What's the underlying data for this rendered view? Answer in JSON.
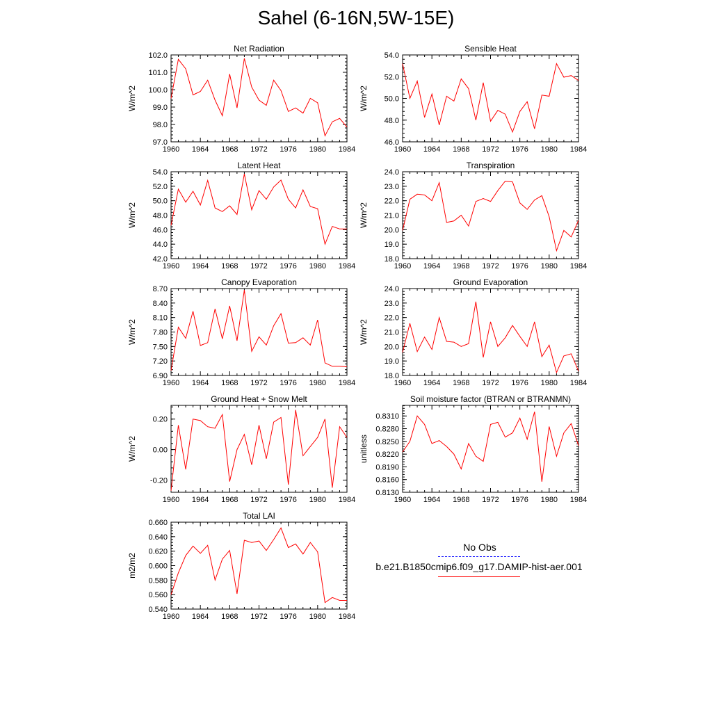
{
  "page": {
    "title": "Sahel (6-16N,5W-15E)"
  },
  "legend": {
    "entries": [
      {
        "label": "No Obs",
        "color": "#1a1aff",
        "dash": "dashed"
      },
      {
        "label": "b.e21.B1850cmip6.f09_g17.DAMIP-hist-aer.001",
        "color": "#ff0000",
        "dash": "solid"
      }
    ]
  },
  "colors": {
    "series": "#ff0000",
    "axis": "#000000"
  },
  "chart_data": [
    {
      "type": "line",
      "title": "Net Radiation",
      "xlabel": "",
      "ylabel": "W/m^2",
      "xlim": [
        1960,
        1984
      ],
      "ylim": [
        97.0,
        102.0
      ],
      "xticks": [
        1960,
        1964,
        1968,
        1972,
        1976,
        1980,
        1984
      ],
      "xtick_labels": [
        "1960",
        "1964",
        "1968",
        "1972",
        "1976",
        "1980",
        "1984"
      ],
      "yticks": [
        97.0,
        98.0,
        99.0,
        100.0,
        101.0,
        102.0
      ],
      "ytick_labels": [
        "97.0",
        "98.0",
        "99.0",
        "100.0",
        "101.0",
        "102.0"
      ],
      "x": [
        1960,
        1961,
        1962,
        1963,
        1964,
        1965,
        1966,
        1967,
        1968,
        1969,
        1970,
        1971,
        1972,
        1973,
        1974,
        1975,
        1976,
        1977,
        1978,
        1979,
        1980,
        1981,
        1982,
        1983,
        1984
      ],
      "series": [
        {
          "values": [
            99.5,
            101.75,
            101.2,
            99.7,
            99.9,
            100.55,
            99.4,
            98.5,
            100.9,
            98.95,
            101.8,
            100.15,
            99.4,
            99.1,
            100.55,
            99.95,
            98.75,
            98.95,
            98.65,
            99.5,
            99.25,
            97.35,
            98.15,
            98.35,
            97.85
          ]
        }
      ]
    },
    {
      "type": "line",
      "title": "Sensible Heat",
      "xlabel": "",
      "ylabel": "W/m^2",
      "xlim": [
        1960,
        1984
      ],
      "ylim": [
        46.0,
        54.0
      ],
      "xticks": [
        1960,
        1964,
        1968,
        1972,
        1976,
        1980,
        1984
      ],
      "xtick_labels": [
        "1960",
        "1964",
        "1968",
        "1972",
        "1976",
        "1980",
        "1984"
      ],
      "yticks": [
        46.0,
        48.0,
        50.0,
        52.0,
        54.0
      ],
      "ytick_labels": [
        "46.0",
        "48.0",
        "50.0",
        "52.0",
        "54.0"
      ],
      "x": [
        1960,
        1961,
        1962,
        1963,
        1964,
        1965,
        1966,
        1967,
        1968,
        1969,
        1970,
        1971,
        1972,
        1973,
        1974,
        1975,
        1976,
        1977,
        1978,
        1979,
        1980,
        1981,
        1982,
        1983,
        1984
      ],
      "series": [
        {
          "values": [
            53.2,
            50.0,
            51.6,
            48.25,
            50.4,
            47.55,
            50.2,
            49.75,
            51.8,
            50.9,
            48.0,
            51.45,
            47.9,
            48.9,
            48.55,
            46.9,
            48.8,
            49.7,
            47.2,
            50.3,
            50.2,
            53.2,
            51.95,
            52.1,
            51.65
          ]
        }
      ]
    },
    {
      "type": "line",
      "title": "Latent Heat",
      "xlabel": "",
      "ylabel": "W/m^2",
      "xlim": [
        1960,
        1984
      ],
      "ylim": [
        42.0,
        54.0
      ],
      "xticks": [
        1960,
        1964,
        1968,
        1972,
        1976,
        1980,
        1984
      ],
      "xtick_labels": [
        "1960",
        "1964",
        "1968",
        "1972",
        "1976",
        "1980",
        "1984"
      ],
      "yticks": [
        42.0,
        44.0,
        46.0,
        48.0,
        50.0,
        52.0,
        54.0
      ],
      "ytick_labels": [
        "42.0",
        "44.0",
        "46.0",
        "48.0",
        "50.0",
        "52.0",
        "54.0"
      ],
      "x": [
        1960,
        1961,
        1962,
        1963,
        1964,
        1965,
        1966,
        1967,
        1968,
        1969,
        1970,
        1971,
        1972,
        1973,
        1974,
        1975,
        1976,
        1977,
        1978,
        1979,
        1980,
        1981,
        1982,
        1983,
        1984
      ],
      "series": [
        {
          "values": [
            46.6,
            51.6,
            49.8,
            51.3,
            49.4,
            52.8,
            49.0,
            48.5,
            49.3,
            48.1,
            53.7,
            48.75,
            51.4,
            50.2,
            51.9,
            52.85,
            50.2,
            49.0,
            51.5,
            49.2,
            48.9,
            44.0,
            46.45,
            46.1,
            46.1
          ]
        }
      ]
    },
    {
      "type": "line",
      "title": "Transpiration",
      "xlabel": "",
      "ylabel": "W/m^2",
      "xlim": [
        1960,
        1984
      ],
      "ylim": [
        18.0,
        24.0
      ],
      "xticks": [
        1960,
        1964,
        1968,
        1972,
        1976,
        1980,
        1984
      ],
      "xtick_labels": [
        "1960",
        "1964",
        "1968",
        "1972",
        "1976",
        "1980",
        "1984"
      ],
      "yticks": [
        18.0,
        19.0,
        20.0,
        21.0,
        22.0,
        23.0,
        24.0
      ],
      "ytick_labels": [
        "18.0",
        "19.0",
        "20.0",
        "21.0",
        "22.0",
        "23.0",
        "24.0"
      ],
      "x": [
        1960,
        1961,
        1962,
        1963,
        1964,
        1965,
        1966,
        1967,
        1968,
        1969,
        1970,
        1971,
        1972,
        1973,
        1974,
        1975,
        1976,
        1977,
        1978,
        1979,
        1980,
        1981,
        1982,
        1983,
        1984
      ],
      "series": [
        {
          "values": [
            19.95,
            22.1,
            22.45,
            22.4,
            22.0,
            23.25,
            20.5,
            20.6,
            21.0,
            20.25,
            21.95,
            22.15,
            21.95,
            22.7,
            23.35,
            23.3,
            21.85,
            21.4,
            22.05,
            22.35,
            20.9,
            18.55,
            19.95,
            19.5,
            20.65
          ]
        }
      ]
    },
    {
      "type": "line",
      "title": "Canopy Evaporation",
      "xlabel": "",
      "ylabel": "W/m^2",
      "xlim": [
        1960,
        1984
      ],
      "ylim": [
        6.9,
        8.7
      ],
      "xticks": [
        1960,
        1964,
        1968,
        1972,
        1976,
        1980,
        1984
      ],
      "xtick_labels": [
        "1960",
        "1964",
        "1968",
        "1972",
        "1976",
        "1980",
        "1984"
      ],
      "yticks": [
        6.9,
        7.2,
        7.5,
        7.8,
        8.1,
        8.4,
        8.7
      ],
      "ytick_labels": [
        "6.90",
        "7.20",
        "7.50",
        "7.80",
        "8.10",
        "8.40",
        "8.70"
      ],
      "x": [
        1960,
        1961,
        1962,
        1963,
        1964,
        1965,
        1966,
        1967,
        1968,
        1969,
        1970,
        1971,
        1972,
        1973,
        1974,
        1975,
        1976,
        1977,
        1978,
        1979,
        1980,
        1981,
        1982,
        1983,
        1984
      ],
      "series": [
        {
          "values": [
            7.0,
            7.9,
            7.67,
            8.23,
            7.52,
            7.58,
            8.28,
            7.66,
            8.34,
            7.62,
            8.67,
            7.4,
            7.7,
            7.53,
            7.93,
            8.18,
            7.57,
            7.58,
            7.68,
            7.53,
            8.05,
            7.16,
            7.09,
            7.09,
            7.08
          ]
        }
      ]
    },
    {
      "type": "line",
      "title": "Ground Evaporation",
      "xlabel": "",
      "ylabel": "W/m^2",
      "xlim": [
        1960,
        1984
      ],
      "ylim": [
        18.0,
        24.0
      ],
      "xticks": [
        1960,
        1964,
        1968,
        1972,
        1976,
        1980,
        1984
      ],
      "xtick_labels": [
        "1960",
        "1964",
        "1968",
        "1972",
        "1976",
        "1980",
        "1984"
      ],
      "yticks": [
        18.0,
        19.0,
        20.0,
        21.0,
        22.0,
        23.0,
        24.0
      ],
      "ytick_labels": [
        "18.0",
        "19.0",
        "20.0",
        "21.0",
        "22.0",
        "23.0",
        "24.0"
      ],
      "x": [
        1960,
        1961,
        1962,
        1963,
        1964,
        1965,
        1966,
        1967,
        1968,
        1969,
        1970,
        1971,
        1972,
        1973,
        1974,
        1975,
        1976,
        1977,
        1978,
        1979,
        1980,
        1981,
        1982,
        1983,
        1984
      ],
      "series": [
        {
          "values": [
            19.6,
            21.6,
            19.65,
            20.65,
            19.8,
            22.0,
            20.35,
            20.3,
            20.0,
            20.2,
            23.1,
            19.25,
            21.7,
            20.0,
            20.6,
            21.45,
            20.7,
            20.0,
            21.7,
            19.3,
            20.1,
            18.2,
            19.35,
            19.5,
            18.3
          ]
        }
      ]
    },
    {
      "type": "line",
      "title": "Ground Heat + Snow Melt",
      "xlabel": "",
      "ylabel": "W/m^2",
      "xlim": [
        1960,
        1984
      ],
      "ylim": [
        -0.28,
        0.29
      ],
      "xticks": [
        1960,
        1964,
        1968,
        1972,
        1976,
        1980,
        1984
      ],
      "xtick_labels": [
        "1960",
        "1964",
        "1968",
        "1972",
        "1976",
        "1980",
        "1984"
      ],
      "yticks": [
        -0.2,
        0.0,
        0.2
      ],
      "ytick_labels": [
        "-0.20",
        "0.00",
        "0.20"
      ],
      "x": [
        1960,
        1961,
        1962,
        1963,
        1964,
        1965,
        1966,
        1967,
        1968,
        1969,
        1970,
        1971,
        1972,
        1973,
        1974,
        1975,
        1976,
        1977,
        1978,
        1979,
        1980,
        1981,
        1982,
        1983,
        1984
      ],
      "series": [
        {
          "values": [
            -0.27,
            0.16,
            -0.13,
            0.2,
            0.19,
            0.15,
            0.14,
            0.23,
            -0.21,
            0.0,
            0.1,
            -0.1,
            0.16,
            -0.06,
            0.18,
            0.21,
            -0.23,
            0.26,
            -0.04,
            0.02,
            0.08,
            0.2,
            -0.25,
            0.15,
            0.08
          ]
        }
      ]
    },
    {
      "type": "line",
      "title": "Soil moisture factor (BTRAN or BTRANMN)",
      "xlabel": "",
      "ylabel": "unitless",
      "xlim": [
        1960,
        1984
      ],
      "ylim": [
        0.813,
        0.8335
      ],
      "xticks": [
        1960,
        1964,
        1968,
        1972,
        1976,
        1980,
        1984
      ],
      "xtick_labels": [
        "1960",
        "1964",
        "1968",
        "1972",
        "1976",
        "1980",
        "1984"
      ],
      "yticks": [
        0.813,
        0.816,
        0.819,
        0.822,
        0.825,
        0.828,
        0.831
      ],
      "ytick_labels": [
        "0.8130",
        "0.8160",
        "0.8190",
        "0.8220",
        "0.8250",
        "0.8280",
        "0.8310"
      ],
      "x": [
        1960,
        1961,
        1962,
        1963,
        1964,
        1965,
        1966,
        1967,
        1968,
        1969,
        1970,
        1971,
        1972,
        1973,
        1974,
        1975,
        1976,
        1977,
        1978,
        1979,
        1980,
        1981,
        1982,
        1983,
        1984
      ],
      "series": [
        {
          "values": [
            0.8225,
            0.825,
            0.831,
            0.829,
            0.8245,
            0.8252,
            0.8238,
            0.822,
            0.8185,
            0.8245,
            0.8215,
            0.8203,
            0.829,
            0.8295,
            0.826,
            0.827,
            0.8305,
            0.8255,
            0.832,
            0.8155,
            0.8285,
            0.8215,
            0.827,
            0.8292,
            0.824
          ]
        }
      ]
    },
    {
      "type": "line",
      "title": "Total LAI",
      "xlabel": "",
      "ylabel": "m2/m2",
      "xlim": [
        1960,
        1984
      ],
      "ylim": [
        0.54,
        0.66
      ],
      "xticks": [
        1960,
        1964,
        1968,
        1972,
        1976,
        1980,
        1984
      ],
      "xtick_labels": [
        "1960",
        "1964",
        "1968",
        "1972",
        "1976",
        "1980",
        "1984"
      ],
      "yticks": [
        0.54,
        0.56,
        0.58,
        0.6,
        0.62,
        0.64,
        0.66
      ],
      "ytick_labels": [
        "0.540",
        "0.560",
        "0.580",
        "0.600",
        "0.620",
        "0.640",
        "0.660"
      ],
      "x": [
        1960,
        1961,
        1962,
        1963,
        1964,
        1965,
        1966,
        1967,
        1968,
        1969,
        1970,
        1971,
        1972,
        1973,
        1974,
        1975,
        1976,
        1977,
        1978,
        1979,
        1980,
        1981,
        1982,
        1983,
        1984
      ],
      "series": [
        {
          "values": [
            0.56,
            0.59,
            0.614,
            0.627,
            0.617,
            0.628,
            0.58,
            0.609,
            0.621,
            0.561,
            0.635,
            0.632,
            0.634,
            0.621,
            0.636,
            0.652,
            0.625,
            0.63,
            0.616,
            0.632,
            0.619,
            0.549,
            0.556,
            0.552,
            0.552
          ]
        }
      ]
    }
  ]
}
